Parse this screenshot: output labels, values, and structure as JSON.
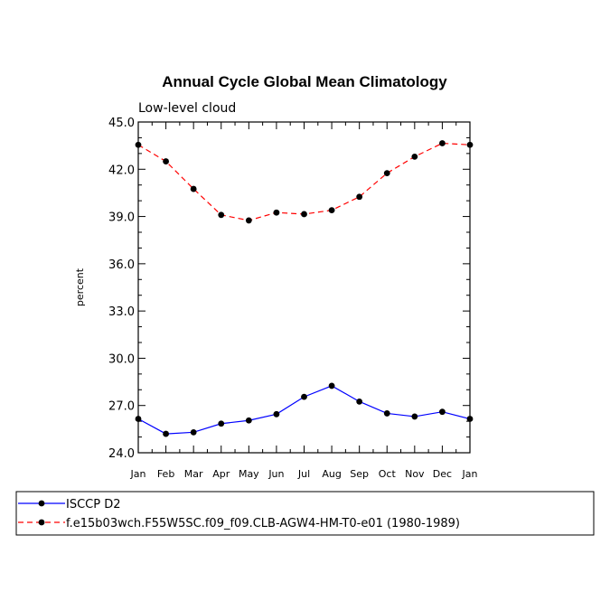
{
  "chart_data": {
    "type": "line",
    "title": "Annual Cycle Global Mean Climatology",
    "subtitle": "Low-level cloud",
    "ylabel": "percent",
    "xlabel": "",
    "ylim": [
      24.0,
      45.0
    ],
    "yticks": [
      "24.0",
      "27.0",
      "30.0",
      "33.0",
      "36.0",
      "39.0",
      "42.0",
      "45.0"
    ],
    "categories": [
      "Jan",
      "Feb",
      "Mar",
      "Apr",
      "May",
      "Jun",
      "Jul",
      "Aug",
      "Sep",
      "Oct",
      "Nov",
      "Dec",
      "Jan"
    ],
    "grid": false,
    "legend_position": "bottom-left",
    "series": [
      {
        "name": "ISCCP D2",
        "color": "#0000ff",
        "dash": "solid",
        "marker": "circle",
        "values": [
          26.15,
          25.2,
          25.3,
          25.85,
          26.05,
          26.45,
          27.55,
          28.25,
          27.25,
          26.5,
          26.3,
          26.6,
          26.15
        ]
      },
      {
        "name": "f.e15b03wch.F55W5SC.f09_f09.CLB-AGW4-HM-T0-e01 (1980-1989)",
        "color": "#ff0000",
        "dash": "dashed",
        "marker": "circle",
        "values": [
          43.55,
          42.5,
          40.75,
          39.1,
          38.75,
          39.25,
          39.15,
          39.4,
          40.25,
          41.75,
          42.8,
          43.65,
          43.55
        ]
      }
    ]
  }
}
